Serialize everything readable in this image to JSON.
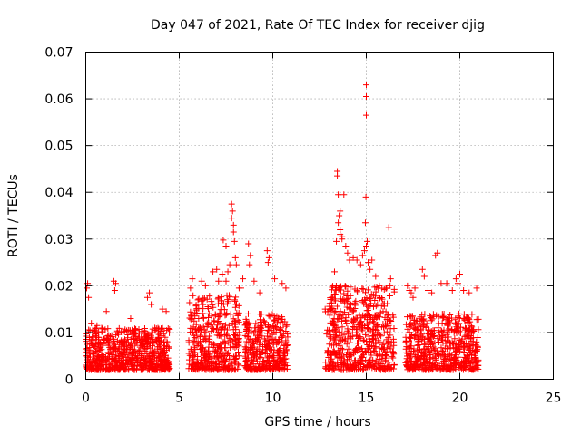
{
  "chart_data": {
    "type": "scatter",
    "title": "Day 047 of 2021, Rate Of TEC Index for receiver djig",
    "xlabel": "GPS time / hours",
    "ylabel": "ROTI / TECUs",
    "xlim": [
      0,
      25
    ],
    "ylim": [
      0,
      0.07
    ],
    "x_ticks": [
      0,
      5,
      10,
      15,
      20,
      25
    ],
    "y_ticks": [
      0,
      0.01,
      0.02,
      0.03,
      0.04,
      0.05,
      0.06,
      0.07
    ],
    "x_tick_labels": [
      "0",
      "5",
      "10",
      "15",
      "20",
      "25"
    ],
    "y_tick_labels": [
      "0",
      "0.01",
      "0.02",
      "0.03",
      "0.04",
      "0.05",
      "0.06",
      "0.07"
    ],
    "grid": true,
    "marker": "+",
    "color": "#ff0000",
    "segments": [
      {
        "x_start": 0.0,
        "x_end": 4.5,
        "y_min": 0.002,
        "y_max": 0.011
      },
      {
        "x_start": 5.5,
        "x_end": 8.2,
        "y_min": 0.002,
        "y_max": 0.018
      },
      {
        "x_start": 8.5,
        "x_end": 10.8,
        "y_min": 0.002,
        "y_max": 0.014
      },
      {
        "x_start": 12.8,
        "x_end": 16.5,
        "y_min": 0.002,
        "y_max": 0.02
      },
      {
        "x_start": 17.1,
        "x_end": 21.0,
        "y_min": 0.002,
        "y_max": 0.014
      }
    ],
    "series": [
      {
        "name": "ROTI",
        "points": [
          [
            0.05,
            0.0195
          ],
          [
            0.1,
            0.0205
          ],
          [
            0.15,
            0.0175
          ],
          [
            0.3,
            0.012
          ],
          [
            0.6,
            0.0115
          ],
          [
            1.1,
            0.0145
          ],
          [
            1.5,
            0.021
          ],
          [
            1.55,
            0.019
          ],
          [
            1.6,
            0.0205
          ],
          [
            2.4,
            0.013
          ],
          [
            3.3,
            0.0175
          ],
          [
            3.4,
            0.0185
          ],
          [
            3.5,
            0.016
          ],
          [
            4.1,
            0.015
          ],
          [
            4.3,
            0.0145
          ],
          [
            5.6,
            0.0195
          ],
          [
            5.7,
            0.0215
          ],
          [
            6.0,
            0.017
          ],
          [
            6.2,
            0.021
          ],
          [
            6.4,
            0.02
          ],
          [
            6.8,
            0.023
          ],
          [
            7.0,
            0.0235
          ],
          [
            7.1,
            0.021
          ],
          [
            7.3,
            0.0225
          ],
          [
            7.5,
            0.021
          ],
          [
            7.6,
            0.023
          ],
          [
            7.7,
            0.0245
          ],
          [
            7.8,
            0.0375
          ],
          [
            7.85,
            0.036
          ],
          [
            7.8,
            0.0345
          ],
          [
            7.9,
            0.033
          ],
          [
            7.9,
            0.0315
          ],
          [
            7.95,
            0.0295
          ],
          [
            8.0,
            0.026
          ],
          [
            8.05,
            0.0245
          ],
          [
            7.35,
            0.0298
          ],
          [
            7.5,
            0.0285
          ],
          [
            8.2,
            0.0195
          ],
          [
            8.3,
            0.0195
          ],
          [
            8.4,
            0.0215
          ],
          [
            8.7,
            0.029
          ],
          [
            8.8,
            0.0265
          ],
          [
            8.75,
            0.0245
          ],
          [
            9.0,
            0.021
          ],
          [
            9.3,
            0.0185
          ],
          [
            9.7,
            0.0275
          ],
          [
            9.8,
            0.026
          ],
          [
            9.75,
            0.025
          ],
          [
            10.1,
            0.0215
          ],
          [
            10.5,
            0.0205
          ],
          [
            10.7,
            0.0195
          ],
          [
            12.8,
            0.015
          ],
          [
            13.0,
            0.0105
          ],
          [
            13.2,
            0.0175
          ],
          [
            13.3,
            0.023
          ],
          [
            13.4,
            0.0295
          ],
          [
            13.45,
            0.0445
          ],
          [
            13.45,
            0.0435
          ],
          [
            13.5,
            0.0395
          ],
          [
            13.6,
            0.036
          ],
          [
            13.55,
            0.035
          ],
          [
            13.5,
            0.0335
          ],
          [
            13.6,
            0.032
          ],
          [
            13.6,
            0.031
          ],
          [
            13.7,
            0.0305
          ],
          [
            13.7,
            0.03
          ],
          [
            13.8,
            0.0395
          ],
          [
            13.9,
            0.0285
          ],
          [
            14.0,
            0.027
          ],
          [
            14.1,
            0.0255
          ],
          [
            14.3,
            0.026
          ],
          [
            14.5,
            0.0255
          ],
          [
            14.7,
            0.0245
          ],
          [
            14.8,
            0.0265
          ],
          [
            14.9,
            0.0275
          ],
          [
            14.95,
            0.0335
          ],
          [
            14.98,
            0.039
          ],
          [
            15.0,
            0.0285
          ],
          [
            15.05,
            0.0295
          ],
          [
            15.1,
            0.025
          ],
          [
            15.2,
            0.0235
          ],
          [
            15.3,
            0.0255
          ],
          [
            15.0,
            0.063
          ],
          [
            15.0,
            0.0605
          ],
          [
            15.0,
            0.0565
          ],
          [
            15.5,
            0.022
          ],
          [
            15.7,
            0.02
          ],
          [
            16.2,
            0.0325
          ],
          [
            16.3,
            0.0215
          ],
          [
            17.2,
            0.02
          ],
          [
            17.3,
            0.019
          ],
          [
            17.4,
            0.0185
          ],
          [
            17.5,
            0.0175
          ],
          [
            17.6,
            0.0195
          ],
          [
            18.0,
            0.0235
          ],
          [
            18.1,
            0.022
          ],
          [
            18.3,
            0.019
          ],
          [
            18.5,
            0.0185
          ],
          [
            18.7,
            0.0265
          ],
          [
            18.8,
            0.027
          ],
          [
            19.0,
            0.0205
          ],
          [
            19.3,
            0.0205
          ],
          [
            19.6,
            0.019
          ],
          [
            19.8,
            0.0215
          ],
          [
            19.9,
            0.0205
          ],
          [
            20.0,
            0.0225
          ],
          [
            20.2,
            0.019
          ],
          [
            20.5,
            0.0185
          ],
          [
            20.9,
            0.0195
          ]
        ]
      }
    ]
  }
}
